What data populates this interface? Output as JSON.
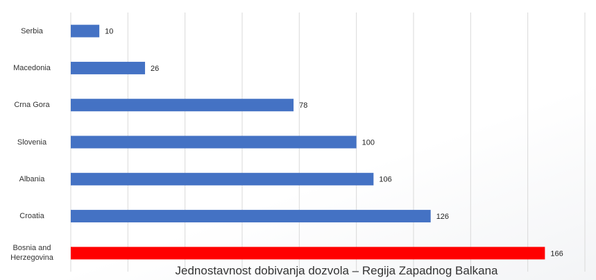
{
  "chart_data": {
    "type": "bar",
    "orientation": "horizontal",
    "title": "Jednostavnost dobivanja dozvola – Regija Zapadnog Balkana",
    "categories": [
      "Serbia",
      "Macedonia",
      "Crna Gora",
      "Slovenia",
      "Albania",
      "Croatia",
      "Bosnia and Herzegovina"
    ],
    "values": [
      10,
      26,
      78,
      100,
      106,
      126,
      166
    ],
    "colors": [
      "#4472c4",
      "#4472c4",
      "#4472c4",
      "#4472c4",
      "#4472c4",
      "#4472c4",
      "#ff0000"
    ],
    "xlim": [
      0,
      180
    ],
    "xticks": [
      0,
      20,
      40,
      60,
      80,
      100,
      120,
      140,
      160,
      180
    ],
    "grid": true
  }
}
